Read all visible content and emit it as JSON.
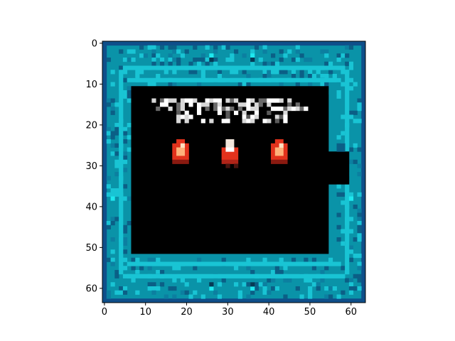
{
  "x_axis": {
    "ticks": [
      0,
      10,
      20,
      30,
      40,
      50,
      60
    ]
  },
  "y_axis": {
    "ticks": [
      0,
      10,
      20,
      30,
      40,
      50,
      60
    ]
  },
  "grid_size": 64,
  "scene": {
    "type": "pixel-art dungeon room",
    "colors": {
      "wall_base": "#0a93a8",
      "wall_light": "#19c4d4",
      "wall_dark": "#0b5f86",
      "wall_border": "#0f4f8a",
      "floor": "#000000",
      "text_pixels": "#d8d8d8",
      "flame": "#e2321c",
      "flame_core": "#ffb27a",
      "door": "#000000"
    },
    "sprites": [
      "fire-left",
      "old-man-red-robe",
      "fire-right"
    ],
    "doorway": "right wall, rows 27-34"
  }
}
